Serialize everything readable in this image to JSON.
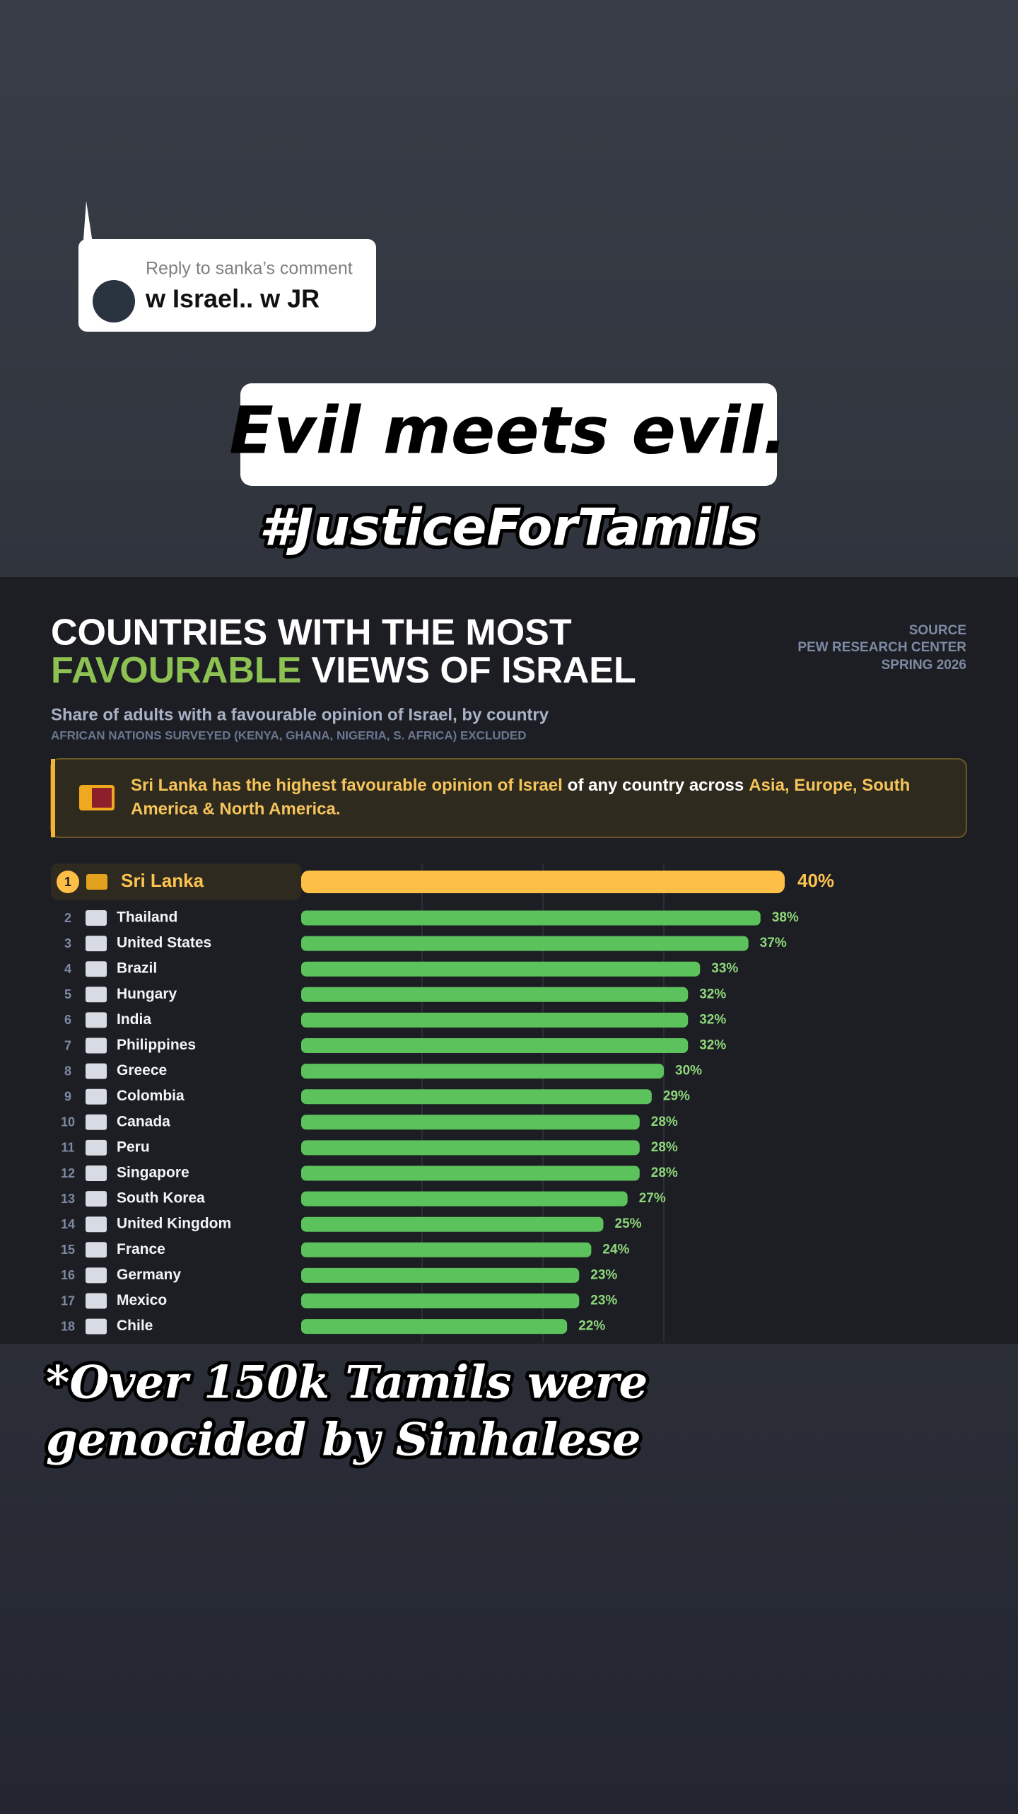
{
  "reply": {
    "label": "Reply to sanka’s comment",
    "text": "w Israel.. w JR"
  },
  "caption": "Evil meets evil.",
  "hashtag": "#JusticeForTamils",
  "footer": {
    "line1": "*Over 150k Tamils were",
    "line2": "genocided by Sinhalese"
  },
  "chart_data": {
    "type": "bar",
    "title": {
      "line1": "COUNTRIES WITH THE MOST",
      "highlight": "FAVOURABLE",
      "rest": "VIEWS OF ISRAEL"
    },
    "source": [
      "SOURCE",
      "PEW RESEARCH CENTER",
      "SPRING 2026"
    ],
    "subtitle": "Share of adults with a favourable opinion of Israel, by country",
    "note": "AFRICAN NATIONS SURVEYED (KENYA, GHANA, NIGERIA, S. AFRICA) EXCLUDED",
    "callout": {
      "line1": [
        "Sri Lanka has the highest favourable opinion of Israel",
        "of any country across",
        "Asia, Europe, South"
      ],
      "line2": "America & North America."
    },
    "ranks": [
      1,
      2,
      3,
      4,
      5,
      6,
      7,
      8,
      9,
      10,
      11,
      12,
      13,
      14,
      15,
      16,
      17,
      18
    ],
    "categories": [
      "Sri Lanka",
      "Thailand",
      "United States",
      "Brazil",
      "Hungary",
      "India",
      "Philippines",
      "Greece",
      "Colombia",
      "Canada",
      "Peru",
      "Singapore",
      "South Korea",
      "United Kingdom",
      "France",
      "Germany",
      "Mexico",
      "Chile"
    ],
    "values": [
      40,
      38,
      37,
      33,
      32,
      32,
      32,
      30,
      29,
      28,
      28,
      28,
      27,
      25,
      24,
      23,
      23,
      22
    ],
    "value_labels": [
      "40%",
      "38%",
      "37%",
      "33%",
      "32%",
      "32%",
      "32%",
      "30%",
      "29%",
      "28%",
      "28%",
      "28%",
      "27%",
      "25%",
      "24%",
      "23%",
      "23%",
      "22%"
    ],
    "color": "#5cc25c",
    "highlight_color": "#fdbf45",
    "xlim": [
      0,
      50
    ],
    "xticks": [
      10,
      20,
      30
    ],
    "grid": true
  }
}
